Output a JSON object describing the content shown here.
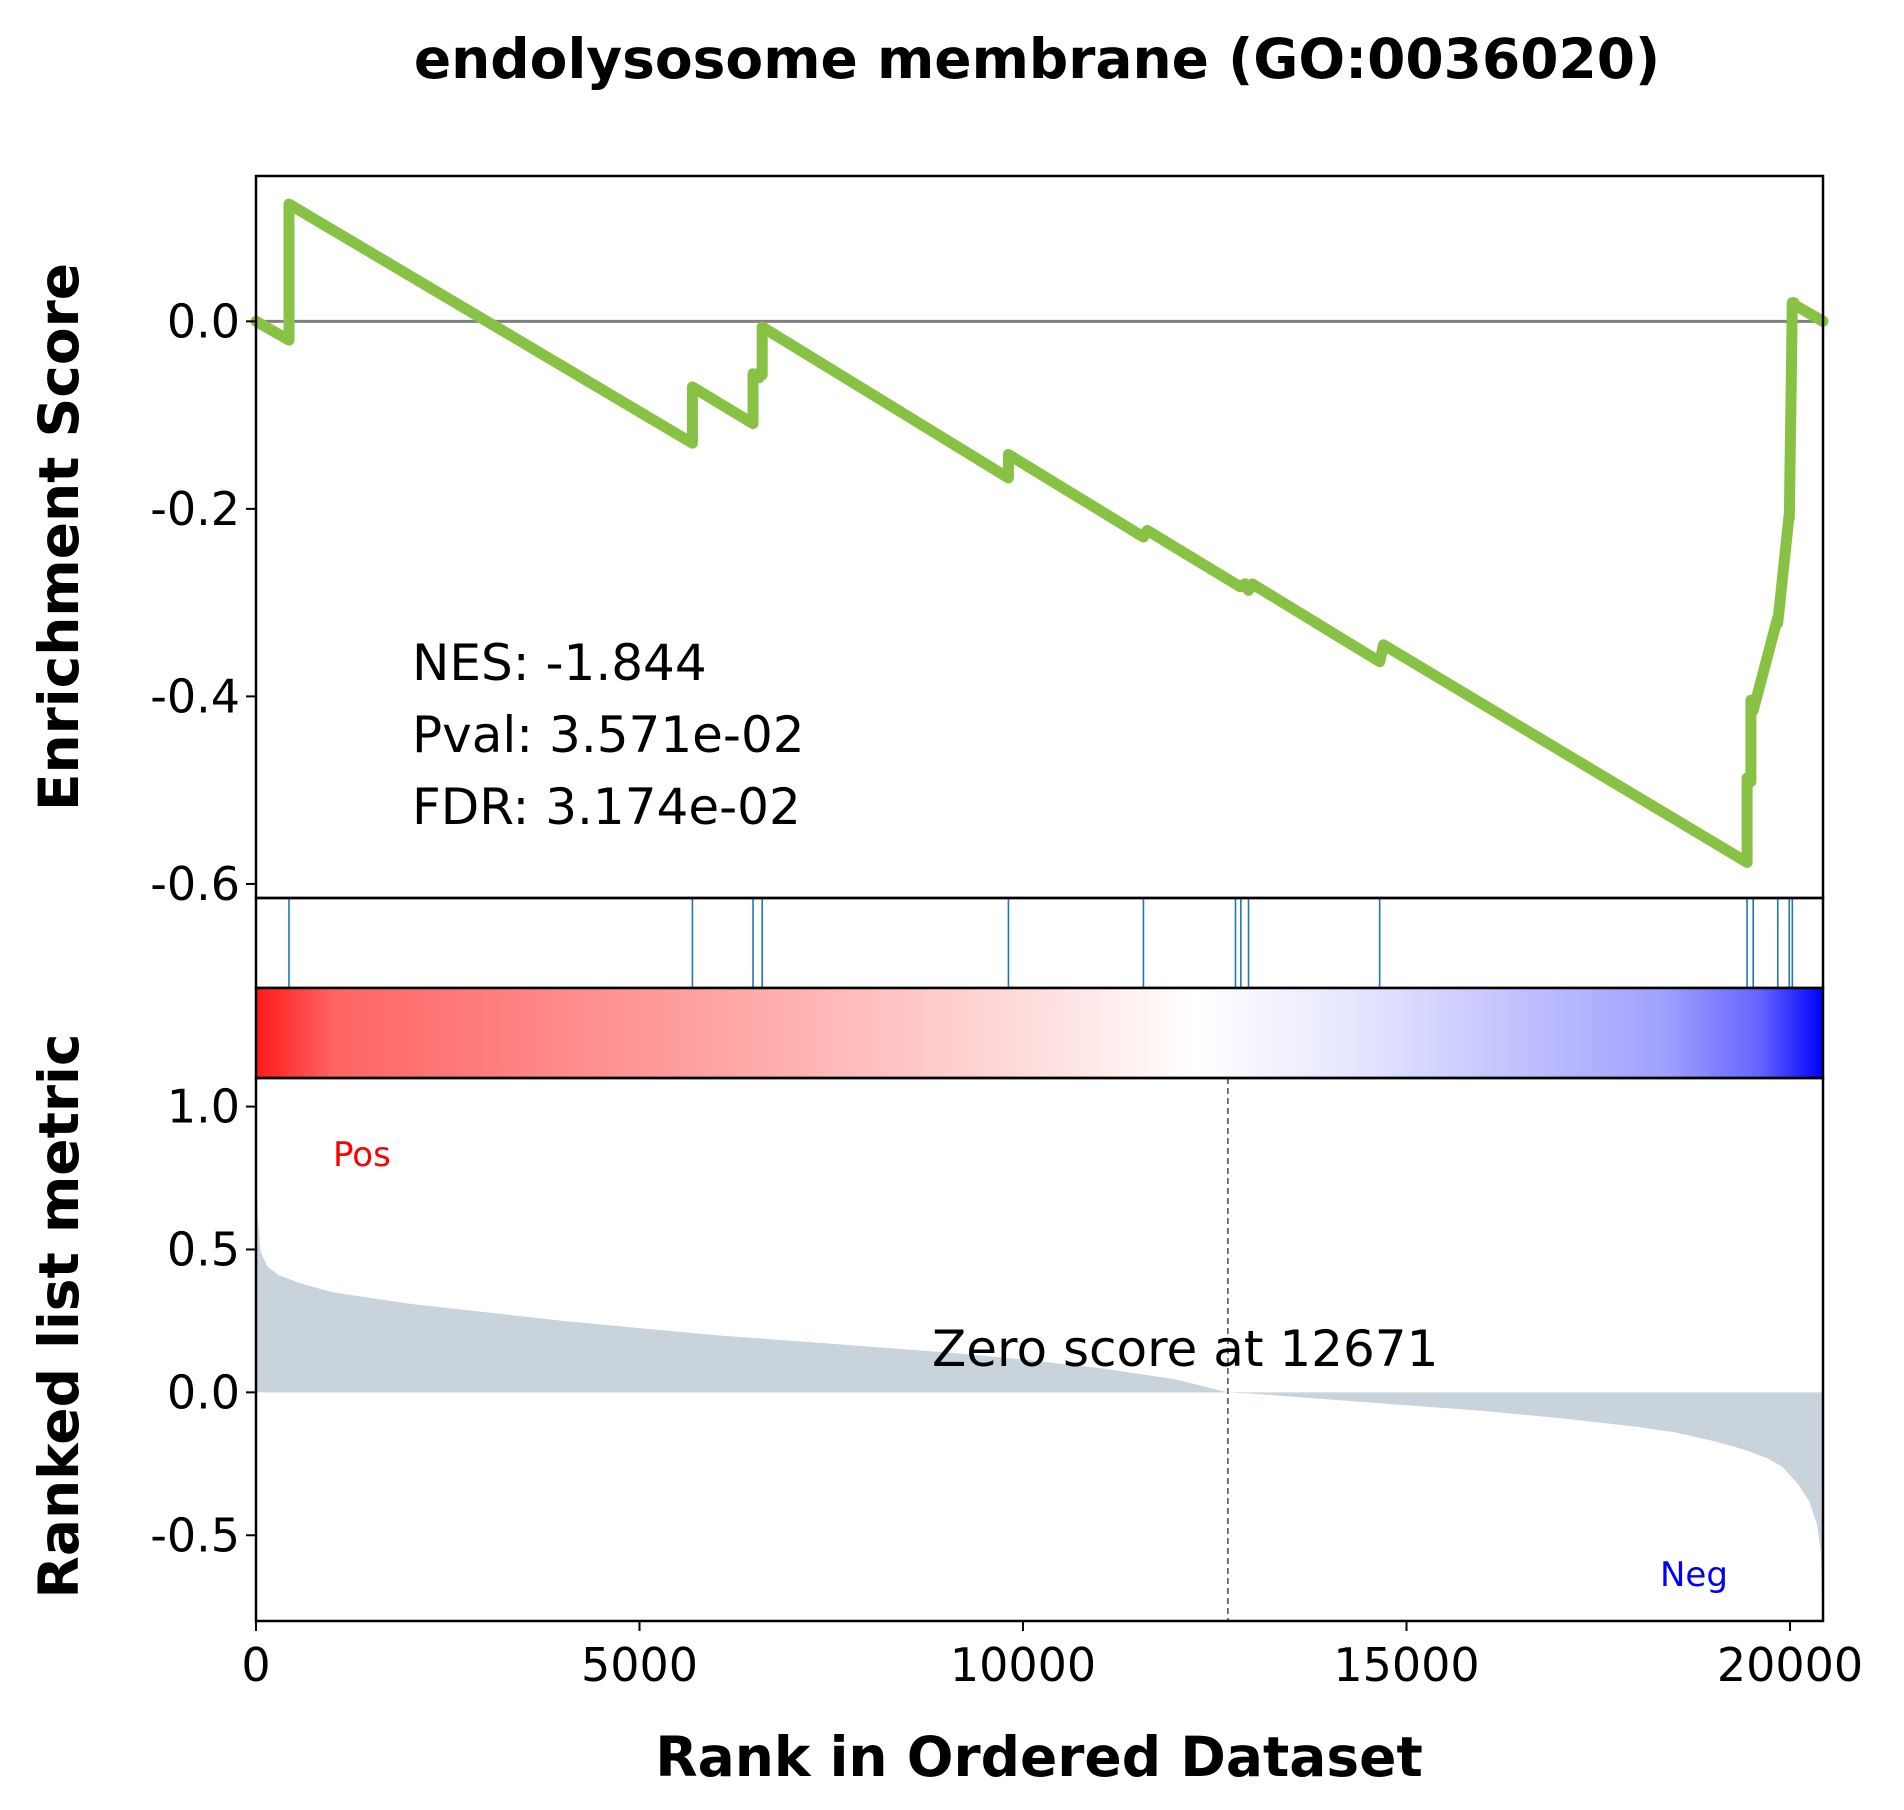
{
  "chart_data": {
    "type": "line",
    "title": "endolysosome membrane (GO:0036020)",
    "colors": {
      "es_line": "#88c244",
      "hit_line": "#1f77b4",
      "metric_fill": "#c8d3db",
      "pos": "#ff0000",
      "neg": "#0000ff",
      "zero_line": "#808080"
    },
    "es_panel": {
      "ylabel": "Enrichment Score",
      "ylim": [
        -0.615,
        0.155
      ],
      "yticks": [
        {
          "value": 0.0,
          "label": "0.0"
        },
        {
          "value": -0.2,
          "label": "-0.2"
        },
        {
          "value": -0.4,
          "label": "-0.4"
        },
        {
          "value": -0.6,
          "label": "-0.6"
        }
      ],
      "series": {
        "x": [
          0,
          430,
          430,
          5690,
          5690,
          6480,
          6480,
          6560,
          6560,
          6600,
          6600,
          9810,
          9810,
          11570,
          11620,
          12770,
          12830,
          12890,
          12940,
          12990,
          14650,
          14700,
          19440,
          19440,
          19490,
          19490,
          19520,
          19520,
          19840,
          19840,
          19990,
          19990,
          20010,
          20010,
          20030,
          20030,
          20050,
          20050,
          20430
        ],
        "y": [
          0.0,
          -0.02,
          0.125,
          -0.13,
          -0.07,
          -0.109,
          -0.056,
          -0.06,
          -0.055,
          -0.057,
          -0.006,
          -0.167,
          -0.142,
          -0.23,
          -0.223,
          -0.28,
          -0.283,
          -0.28,
          -0.287,
          -0.28,
          -0.363,
          -0.345,
          -0.577,
          -0.487,
          -0.491,
          -0.404,
          -0.405,
          -0.415,
          -0.316,
          -0.322,
          -0.205,
          -0.21,
          -0.095,
          -0.1,
          0.02,
          0.018,
          0.02,
          0.018,
          0.0
        ]
      },
      "annotations": {
        "nes": "NES: -1.844",
        "pval": "Pval: 3.571e-02",
        "fdr": "FDR: 3.174e-02"
      }
    },
    "hits": [
      430,
      5690,
      6480,
      6600,
      9810,
      11570,
      12770,
      12840,
      12940,
      14650,
      19440,
      19520,
      19840,
      19990,
      20030
    ],
    "metric_panel": {
      "ylabel": "Ranked list metric",
      "xlabel": "Rank in Ordered Dataset",
      "xlim": [
        0,
        20430
      ],
      "ylim": [
        -0.8,
        1.1
      ],
      "xticks": [
        {
          "value": 0,
          "label": "0"
        },
        {
          "value": 5000,
          "label": "5000"
        },
        {
          "value": 10000,
          "label": "10000"
        },
        {
          "value": 15000,
          "label": "15000"
        },
        {
          "value": 20000,
          "label": "20000"
        }
      ],
      "yticks": [
        {
          "value": 1.0,
          "label": "1.0"
        },
        {
          "value": 0.5,
          "label": "0.5"
        },
        {
          "value": 0.0,
          "label": "0.0"
        },
        {
          "value": -0.5,
          "label": "-0.5"
        }
      ],
      "curve": {
        "x": [
          0,
          20,
          60,
          150,
          300,
          600,
          1000,
          2000,
          3000,
          4000,
          5000,
          6000,
          7000,
          8000,
          9000,
          10000,
          11000,
          12000,
          12671,
          13000,
          14000,
          15000,
          16000,
          17000,
          18000,
          18500,
          19000,
          19400,
          19700,
          19900,
          20100,
          20250,
          20350,
          20400,
          20430
        ],
        "y": [
          1.0,
          0.62,
          0.49,
          0.44,
          0.41,
          0.38,
          0.35,
          0.31,
          0.28,
          0.25,
          0.225,
          0.2,
          0.18,
          0.16,
          0.14,
          0.115,
          0.085,
          0.045,
          0.0,
          -0.005,
          -0.025,
          -0.045,
          -0.065,
          -0.09,
          -0.12,
          -0.14,
          -0.17,
          -0.2,
          -0.23,
          -0.26,
          -0.32,
          -0.38,
          -0.46,
          -0.55,
          -0.8
        ]
      },
      "zero_score": 12671,
      "zero_label": "Zero score at 12671",
      "pos_label": "Pos",
      "neg_label": "Neg"
    }
  }
}
